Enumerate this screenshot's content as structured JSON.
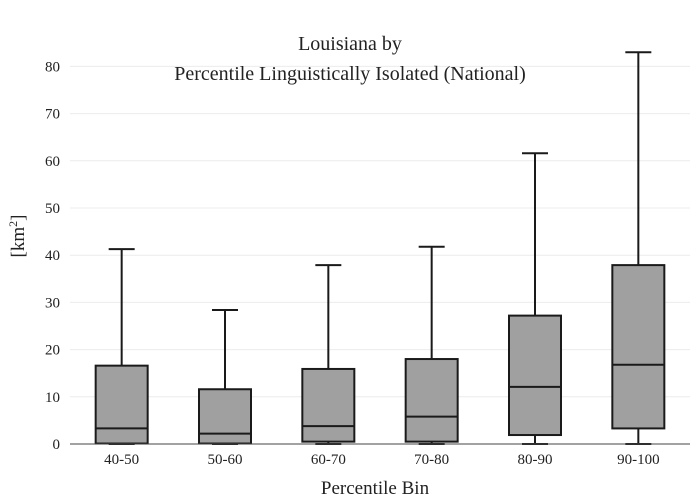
{
  "chart_data": {
    "type": "box",
    "title_lines": [
      "Louisiana  by",
      "Percentile Linguistically Isolated (National)"
    ],
    "xlabel": "Percentile Bin",
    "ylabel_prefix": "[km",
    "ylabel_sup": "2",
    "ylabel_suffix": "]",
    "ylim": [
      0,
      85
    ],
    "yticks": [
      0,
      10,
      20,
      30,
      40,
      50,
      60,
      70,
      80
    ],
    "grid": true,
    "box_color": "#a0a0a0",
    "line_color": "#1a1a1a",
    "categories": [
      "40-50",
      "50-60",
      "60-70",
      "70-80",
      "80-90",
      "90-100"
    ],
    "boxes": [
      {
        "category": "40-50",
        "min": 0,
        "q1": 0.1,
        "median": 3.3,
        "q3": 16.6,
        "max": 41.3
      },
      {
        "category": "50-60",
        "min": 0,
        "q1": 0.1,
        "median": 2.2,
        "q3": 11.6,
        "max": 28.4
      },
      {
        "category": "60-70",
        "min": 0,
        "q1": 0.5,
        "median": 3.8,
        "q3": 15.9,
        "max": 37.9
      },
      {
        "category": "70-80",
        "min": 0,
        "q1": 0.5,
        "median": 5.8,
        "q3": 18.0,
        "max": 41.8
      },
      {
        "category": "80-90",
        "min": 0,
        "q1": 1.9,
        "median": 12.1,
        "q3": 27.2,
        "max": 61.6
      },
      {
        "category": "90-100",
        "min": 0,
        "q1": 3.3,
        "median": 16.8,
        "q3": 37.9,
        "max": 83.0
      }
    ]
  }
}
